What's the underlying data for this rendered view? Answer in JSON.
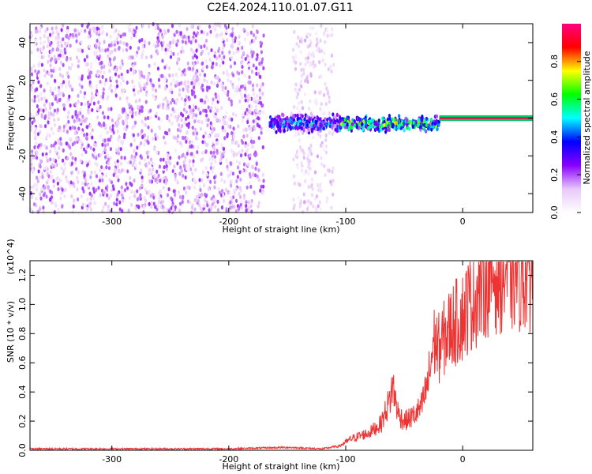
{
  "chart_data": [
    {
      "type": "heatmap",
      "title": "C2E4.2024.110.01.07.G11",
      "xlabel": "Height of straight line (km)",
      "ylabel": "Frequency (Hz)",
      "xlim": [
        -370,
        60
      ],
      "ylim": [
        -50,
        50
      ],
      "xticks": [
        -300,
        -200,
        -100,
        0
      ],
      "yticks": [
        -40,
        -20,
        0,
        20,
        40
      ],
      "colorbar": {
        "label": "Normalized spectral amplitude",
        "range": [
          0,
          1
        ],
        "ticks": [
          "0.0",
          "0.2",
          "0.4",
          "0.6",
          "0.8"
        ],
        "colors": [
          "#ffffff",
          "#e8c8f8",
          "#8800ff",
          "#0000ff",
          "#00ffff",
          "#00ff00",
          "#ffff00",
          "#ff0000",
          "#ff0080"
        ]
      },
      "features": [
        {
          "description": "broadband noise",
          "x_range": [
            -370,
            -170
          ],
          "freq_range": [
            -50,
            50
          ],
          "amplitude": 0.15
        },
        {
          "description": "noise",
          "x_range": [
            -145,
            -110
          ],
          "freq_range": [
            -50,
            50
          ],
          "amplitude": 0.1
        },
        {
          "description": "signal",
          "x_range": [
            -165,
            -105
          ],
          "freq_center": -3,
          "freq_halfwidth": 6,
          "amplitude": 0.4
        },
        {
          "description": "signal",
          "x_range": [
            -105,
            -20
          ],
          "freq_center": -3,
          "freq_halfwidth": 5,
          "amplitude": 0.6
        },
        {
          "description": "carrier",
          "x_range": [
            -20,
            60
          ],
          "freq_center": 0,
          "freq_halfwidth": 1,
          "amplitude": 0.95
        }
      ]
    },
    {
      "type": "line",
      "title": "",
      "xlabel": "Height of straight line (km)",
      "ylabel": "SNR (10 * v/v)",
      "yscale_label": "(x10^4)",
      "xlim": [
        -370,
        60
      ],
      "ylim": [
        0,
        1.3
      ],
      "xticks": [
        -300,
        -200,
        -100,
        0
      ],
      "yticks": [
        "0.0",
        "0.2",
        "0.4",
        "0.6",
        "0.8",
        "1.0",
        "1.2"
      ],
      "color": "#ee3333",
      "series": [
        {
          "x": [
            -370,
            -300,
            -200,
            -150,
            -120,
            -105,
            -95,
            -80,
            -70,
            -62,
            -60,
            -55,
            -50,
            -45,
            -40,
            -35,
            -30,
            -27,
            -25,
            -20,
            -15,
            -10,
            -5,
            0,
            5,
            10,
            15,
            20,
            25,
            30,
            40,
            50,
            60
          ],
          "values": [
            0.01,
            0.01,
            0.01,
            0.02,
            0.01,
            0.03,
            0.08,
            0.12,
            0.18,
            0.35,
            0.45,
            0.25,
            0.2,
            0.22,
            0.25,
            0.3,
            0.45,
            0.6,
            0.75,
            0.7,
            0.78,
            0.85,
            0.88,
            0.92,
            1.0,
            1.05,
            1.12,
            1.18,
            1.2,
            1.22,
            1.23,
            1.23,
            1.23
          ]
        }
      ]
    }
  ]
}
